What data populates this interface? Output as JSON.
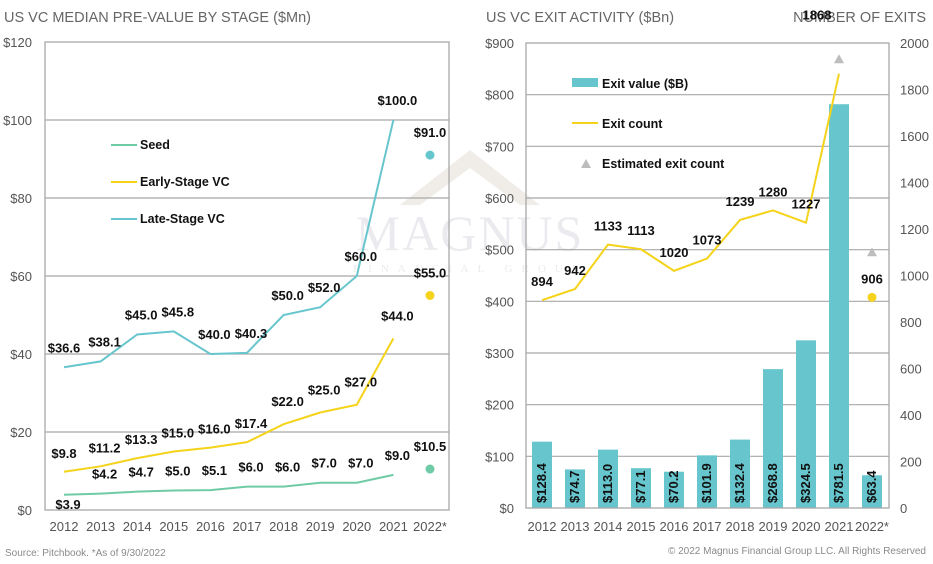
{
  "colors": {
    "seed": "#6ECBA5",
    "early": "#F5D31A",
    "late": "#67C6CD",
    "bar": "#67C6CD",
    "estimate_marker": "#BDBDBD",
    "grid": "#A8A8A8",
    "watermark": "#ECEAE6"
  },
  "watermark": {
    "main": "MAGNUS",
    "sub": "FINANCIAL GROUP"
  },
  "footer": {
    "source": "Source: Pitchbook. *As of 9/30/2022",
    "copyright": "© 2022 Magnus Financial Group LLC. All Rights Reserved"
  },
  "chart_data": [
    {
      "type": "line",
      "title": "US VC MEDIAN PRE-VALUE BY STAGE ($Mn)",
      "xlabel": "",
      "ylabel": "",
      "categories": [
        "2012",
        "2013",
        "2014",
        "2015",
        "2016",
        "2017",
        "2018",
        "2019",
        "2020",
        "2021",
        "2022*"
      ],
      "ylim": [
        0,
        120
      ],
      "yticks": [
        0,
        20,
        40,
        60,
        80,
        100,
        120
      ],
      "ytick_labels": [
        "$0",
        "$20",
        "$40",
        "$60",
        "$80",
        "$100",
        "$120"
      ],
      "grid": true,
      "legend_position": "upper-left",
      "series": [
        {
          "name": "Seed",
          "color_key": "seed",
          "values": [
            3.9,
            4.2,
            4.7,
            5.0,
            5.1,
            6.0,
            6.0,
            7.0,
            7.0,
            9.0,
            null
          ],
          "labels": [
            "$3.9",
            "$4.2",
            "$4.7",
            "$5.0",
            "$5.1",
            "$6.0",
            "$6.0",
            "$7.0",
            "$7.0",
            "$9.0",
            "$10.5"
          ],
          "estimate": {
            "category": "2022*",
            "value": 10.5
          }
        },
        {
          "name": "Early-Stage VC",
          "color_key": "early",
          "values": [
            9.8,
            11.2,
            13.3,
            15.0,
            16.0,
            17.4,
            22.0,
            25.0,
            27.0,
            44.0,
            null
          ],
          "labels": [
            "$9.8",
            "$11.2",
            "$13.3",
            "$15.0",
            "$16.0",
            "$17.4",
            "$22.0",
            "$25.0",
            "$27.0",
            "$44.0",
            "$55.0"
          ],
          "estimate": {
            "category": "2022*",
            "value": 55.0
          }
        },
        {
          "name": "Late-Stage VC",
          "color_key": "late",
          "values": [
            36.6,
            38.1,
            45.0,
            45.8,
            40.0,
            40.3,
            50.0,
            52.0,
            60.0,
            100.0,
            null
          ],
          "labels": [
            "$36.6",
            "$38.1",
            "$45.0",
            "$45.8",
            "$40.0",
            "$40.3",
            "$50.0",
            "$52.0",
            "$60.0",
            "$100.0",
            "$91.0"
          ],
          "estimate": {
            "category": "2022*",
            "value": 91.0
          }
        }
      ]
    },
    {
      "type": "bar",
      "title": "US VC EXIT ACTIVITY ($Bn)",
      "secondary_title": "NUMBER OF EXITS",
      "xlabel": "",
      "ylabel": "",
      "categories": [
        "2012",
        "2013",
        "2014",
        "2015",
        "2016",
        "2017",
        "2018",
        "2019",
        "2020",
        "2021",
        "2022*"
      ],
      "ylim": [
        0,
        900
      ],
      "yticks": [
        0,
        100,
        200,
        300,
        400,
        500,
        600,
        700,
        800,
        900
      ],
      "ytick_labels": [
        "$0",
        "$100",
        "$200",
        "$300",
        "$400",
        "$500",
        "$600",
        "$700",
        "$800",
        "$900"
      ],
      "y2lim": [
        0,
        2000
      ],
      "y2ticks": [
        0,
        200,
        400,
        600,
        800,
        1000,
        1200,
        1400,
        1600,
        1800,
        2000
      ],
      "y2tick_labels": [
        "0",
        "200",
        "400",
        "600",
        "800",
        "1000",
        "1200",
        "1400",
        "1600",
        "1800",
        "2000"
      ],
      "grid": true,
      "legend_position": "upper-left",
      "series": [
        {
          "name": "Exit value ($B)",
          "type": "bar",
          "axis": "left",
          "color_key": "bar",
          "values": [
            128.4,
            74.7,
            113.0,
            77.1,
            70.2,
            101.9,
            132.4,
            268.8,
            324.5,
            781.5,
            63.4
          ],
          "labels": [
            "$128.4",
            "$74.7",
            "$113.0",
            "$77.1",
            "$70.2",
            "$101.9",
            "$132.4",
            "$268.8",
            "$324.5",
            "$781.5",
            "$63.4"
          ]
        },
        {
          "name": "Exit count",
          "type": "line",
          "axis": "right",
          "color_key": "early",
          "values": [
            894,
            942,
            1133,
            1113,
            1020,
            1073,
            1239,
            1280,
            1227,
            1868,
            null
          ],
          "labels": [
            "894",
            "942",
            "1133",
            "1113",
            "1020",
            "1073",
            "1239",
            "1280",
            "1227",
            "1868",
            "906"
          ],
          "estimate": {
            "category": "2022*",
            "value": 906
          }
        },
        {
          "name": "Estimated exit count",
          "type": "marker-triangle",
          "axis": "right",
          "color_key": "estimate_marker",
          "points": [
            {
              "category": "2021",
              "value": 1930
            },
            {
              "category": "2022*",
              "value": 1100
            }
          ]
        }
      ]
    }
  ]
}
